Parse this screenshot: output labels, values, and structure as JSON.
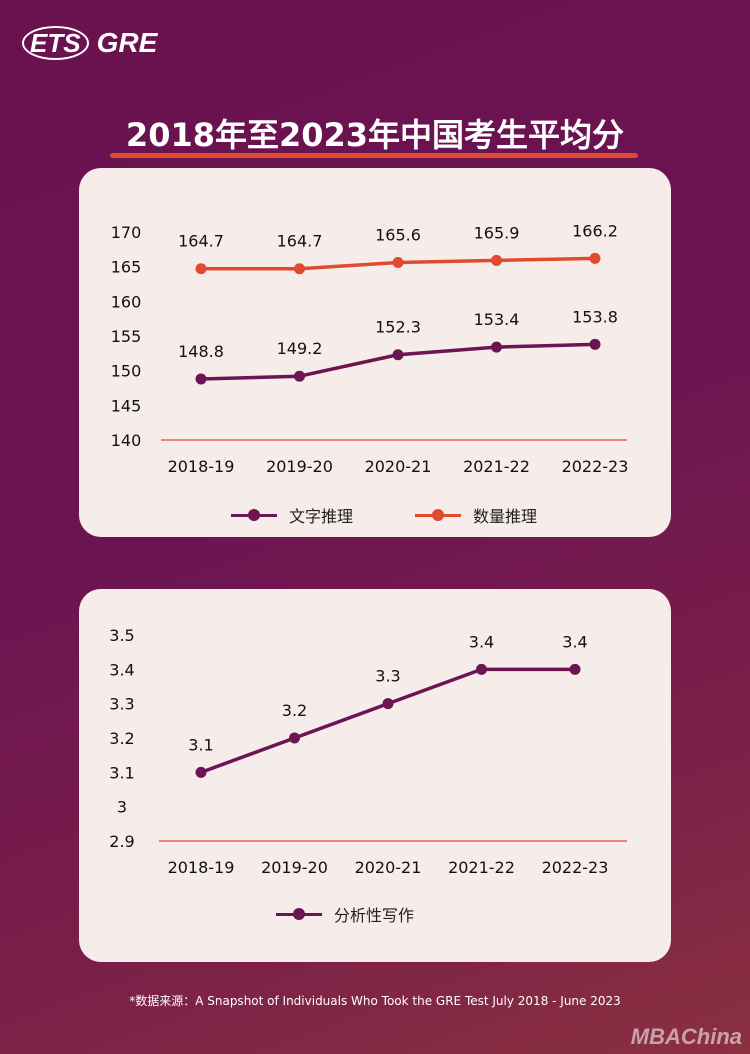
{
  "brand": {
    "ets": "ETS",
    "gre": "GRE"
  },
  "title": "2018年至2023年中国考生平均分",
  "colors": {
    "verbal": "#6b1552",
    "quant": "#e04a2e",
    "baseline": "#e04a2e"
  },
  "chart_data": [
    {
      "type": "line",
      "categories": [
        "2018-19",
        "2019-20",
        "2020-21",
        "2021-22",
        "2022-23"
      ],
      "yticks": [
        "170",
        "165",
        "160",
        "155",
        "150",
        "145",
        "140"
      ],
      "ylim": [
        140,
        170
      ],
      "series": [
        {
          "name": "文字推理",
          "values": [
            148.8,
            149.2,
            152.3,
            153.4,
            153.8
          ],
          "labels": [
            "148.8",
            "149.2",
            "152.3",
            "153.4",
            "153.8"
          ]
        },
        {
          "name": "数量推理",
          "values": [
            164.7,
            164.7,
            165.6,
            165.9,
            166.2
          ],
          "labels": [
            "164.7",
            "164.7",
            "165.6",
            "165.9",
            "166.2"
          ]
        }
      ],
      "legend": "bottom"
    },
    {
      "type": "line",
      "categories": [
        "2018-19",
        "2019-20",
        "2020-21",
        "2021-22",
        "2022-23"
      ],
      "yticks": [
        "3.5",
        "3.4",
        "3.3",
        "3.2",
        "3.1",
        "3",
        "2.9"
      ],
      "ylim": [
        2.9,
        3.5
      ],
      "series": [
        {
          "name": "分析性写作",
          "values": [
            3.1,
            3.2,
            3.3,
            3.4,
            3.4
          ],
          "labels": [
            "3.1",
            "3.2",
            "3.3",
            "3.4",
            "3.4"
          ]
        }
      ],
      "legend": "bottom"
    }
  ],
  "source": "*数据来源：A Snapshot of Individuals Who Took the GRE Test July 2018 - June 2023",
  "watermark": "MBAChina"
}
